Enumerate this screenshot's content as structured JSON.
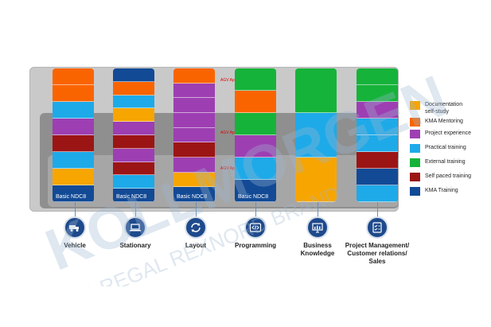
{
  "colors": {
    "documentation": "#f7a500",
    "kma_mentoring": "#fa6400",
    "project_experience": "#9d3fb2",
    "practical_training": "#1eaae8",
    "external_training": "#16b33a",
    "self_paced_training": "#9b1515",
    "kma_training": "#124a96"
  },
  "tier_labels": {
    "tier1": "AGV Application Engineer",
    "tier2": "AGV Application Engineer",
    "tier3": "AGV Application Engineer"
  },
  "base_label": "Basic NDC8",
  "columns": [
    {
      "label": "Vehicle",
      "icon": "truck-icon",
      "base": true,
      "segments": [
        "kma_mentoring",
        "kma_mentoring",
        "practical_training",
        "project_experience",
        "self_paced_training",
        "practical_training",
        "documentation",
        "kma_training"
      ]
    },
    {
      "label": "Stationary",
      "icon": "laptop-icon",
      "base": true,
      "segments": [
        "kma_training",
        "kma_mentoring",
        "practical_training",
        "documentation",
        "project_experience",
        "self_paced_training",
        "project_experience",
        "self_paced_training",
        "practical_training",
        "kma_training"
      ]
    },
    {
      "label": "Layout",
      "icon": "refresh-icon",
      "base": true,
      "segments": [
        "kma_mentoring",
        "project_experience",
        "project_experience",
        "project_experience",
        "project_experience",
        "self_paced_training",
        "project_experience",
        "documentation",
        "kma_training"
      ]
    },
    {
      "label": "Programming",
      "icon": "code-icon",
      "base": true,
      "segments": [
        "external_training",
        "kma_mentoring",
        "external_training",
        "project_experience",
        "practical_training",
        "kma_training"
      ]
    },
    {
      "label": "Business\nKnowledge",
      "icon": "chart-board-icon",
      "base": false,
      "segments": [
        "external_training",
        "practical_training",
        "documentation"
      ]
    },
    {
      "label": "Project Management/\nCustomer relations/\nSales",
      "icon": "checklist-icon",
      "base": false,
      "segments": [
        "external_training",
        "external_training",
        "project_experience",
        "practical_training",
        "practical_training",
        "self_paced_training",
        "kma_training",
        "practical_training"
      ]
    }
  ],
  "legend": [
    {
      "key": "documentation",
      "label": "Documentation\nself-study"
    },
    {
      "key": "kma_mentoring",
      "label": "KMA Mentoring"
    },
    {
      "key": "project_experience",
      "label": "Project experience"
    },
    {
      "key": "practical_training",
      "label": "Practical training"
    },
    {
      "key": "external_training",
      "label": "External training"
    },
    {
      "key": "self_paced_training",
      "label": "Self paced training"
    },
    {
      "key": "kma_training",
      "label": "KMA Training"
    }
  ],
  "watermark": {
    "brand": "KOLLMORGEN",
    "tagline": "A REGAL REXNORD BRAND"
  }
}
